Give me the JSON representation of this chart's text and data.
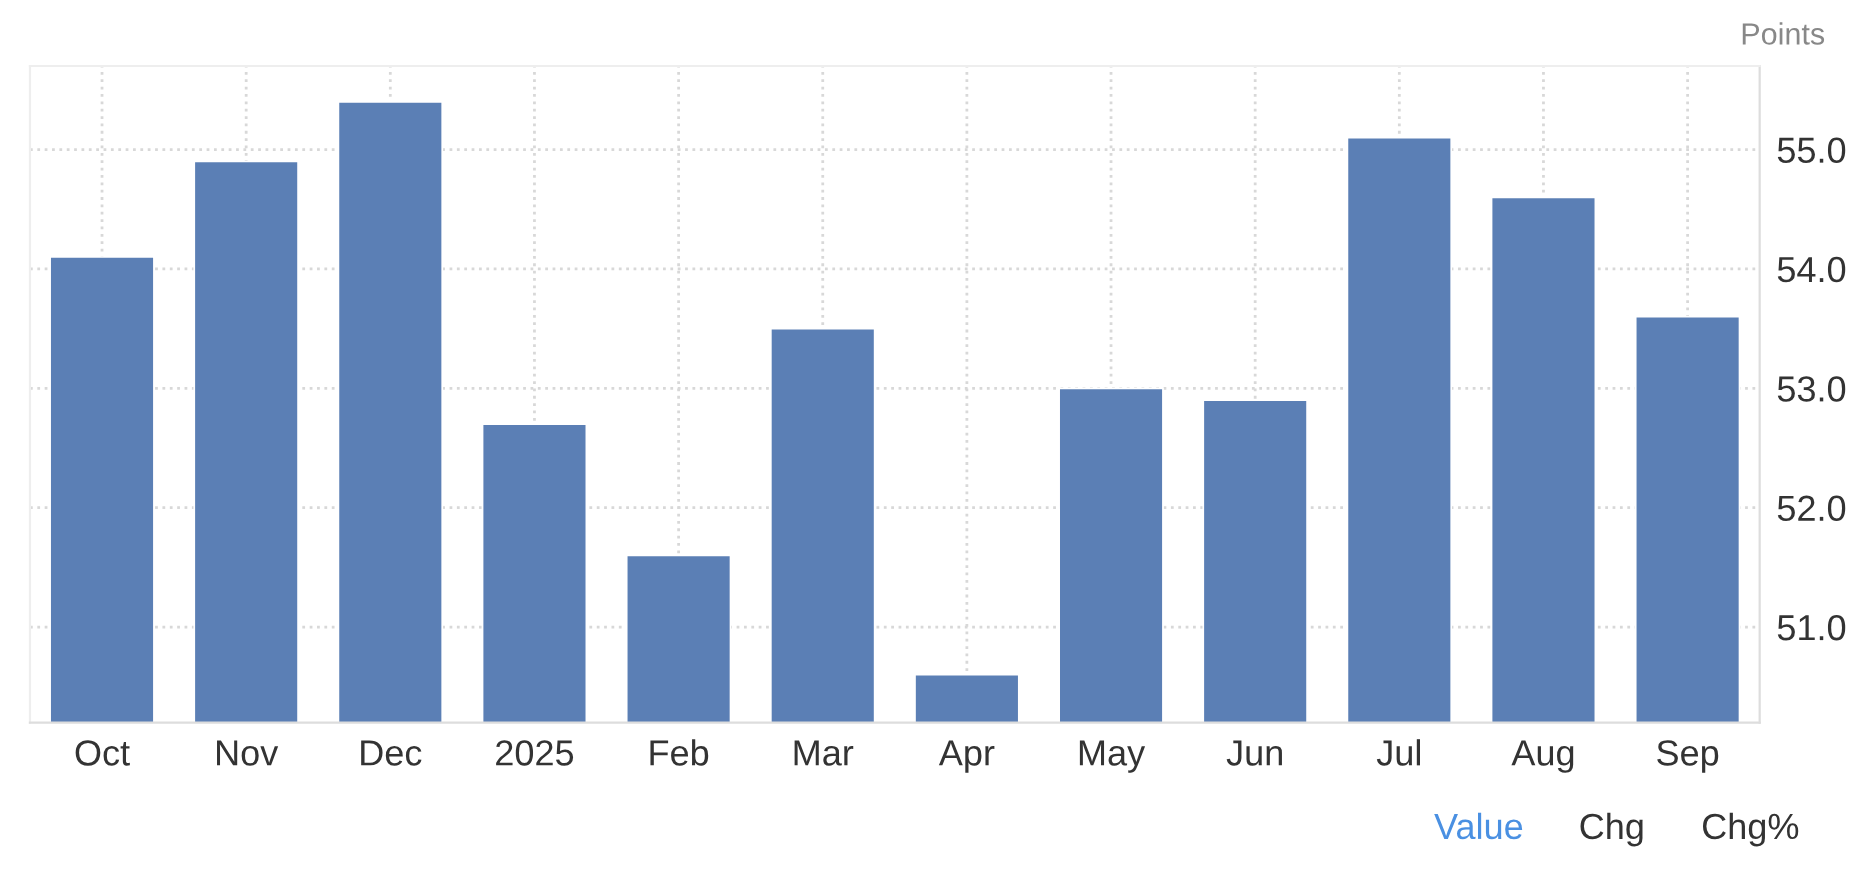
{
  "chart_data": {
    "type": "bar",
    "ylabel": "Points",
    "categories": [
      "Oct",
      "Nov",
      "Dec",
      "2025",
      "Feb",
      "Mar",
      "Apr",
      "May",
      "Jun",
      "Jul",
      "Aug",
      "Sep"
    ],
    "values": [
      54.1,
      54.9,
      55.4,
      52.7,
      51.6,
      53.5,
      50.6,
      53.0,
      52.9,
      55.1,
      54.6,
      53.6
    ],
    "color": "#5b7fb5",
    "ylim": [
      50.2,
      55.7
    ],
    "yticks": [
      {
        "value": 51,
        "label": "51.0"
      },
      {
        "value": 52,
        "label": "52.0"
      },
      {
        "value": 53,
        "label": "53.0"
      },
      {
        "value": 54,
        "label": "54.0"
      },
      {
        "value": 55,
        "label": "55.0"
      }
    ],
    "grid": true,
    "annotations": [
      "Value",
      "Chg",
      "Chg%"
    ]
  }
}
